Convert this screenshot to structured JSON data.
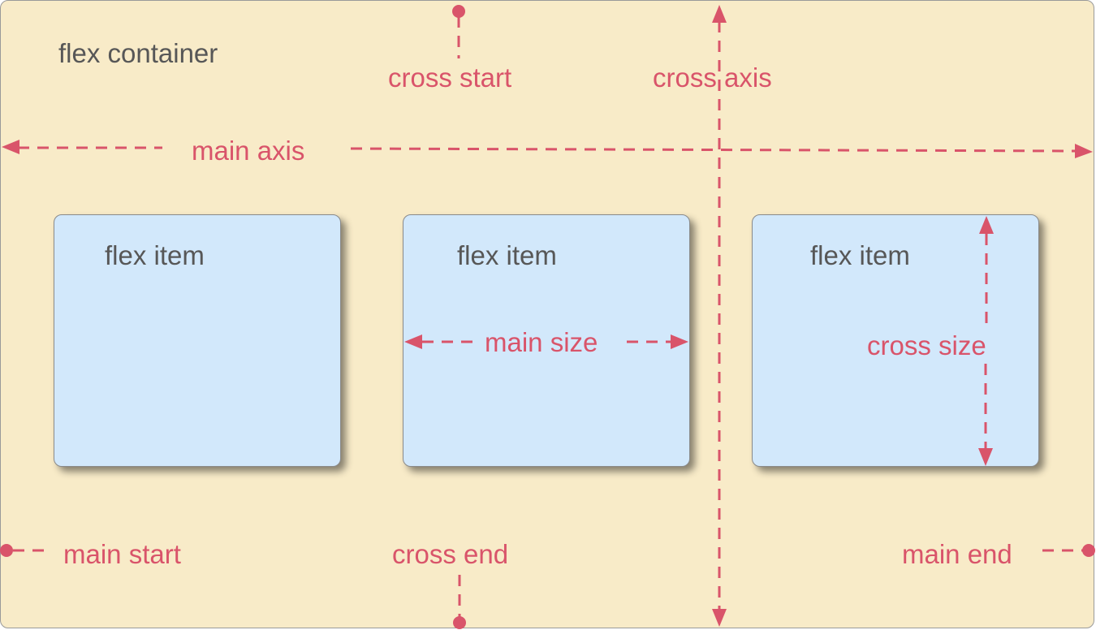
{
  "container": {
    "label": "flex container"
  },
  "items": [
    {
      "label": "flex item"
    },
    {
      "label": "flex item"
    },
    {
      "label": "flex item"
    }
  ],
  "annotations": {
    "cross_start": "cross start",
    "cross_axis": "cross axis",
    "main_axis": "main axis",
    "main_size": "main size",
    "cross_size": "cross size",
    "main_start": "main start",
    "cross_end": "cross end",
    "main_end": "main end"
  },
  "colors": {
    "container_bg": "#f8ebc8",
    "item_bg": "#d2e8fb",
    "annotation": "#d9546a",
    "text": "#575757"
  }
}
